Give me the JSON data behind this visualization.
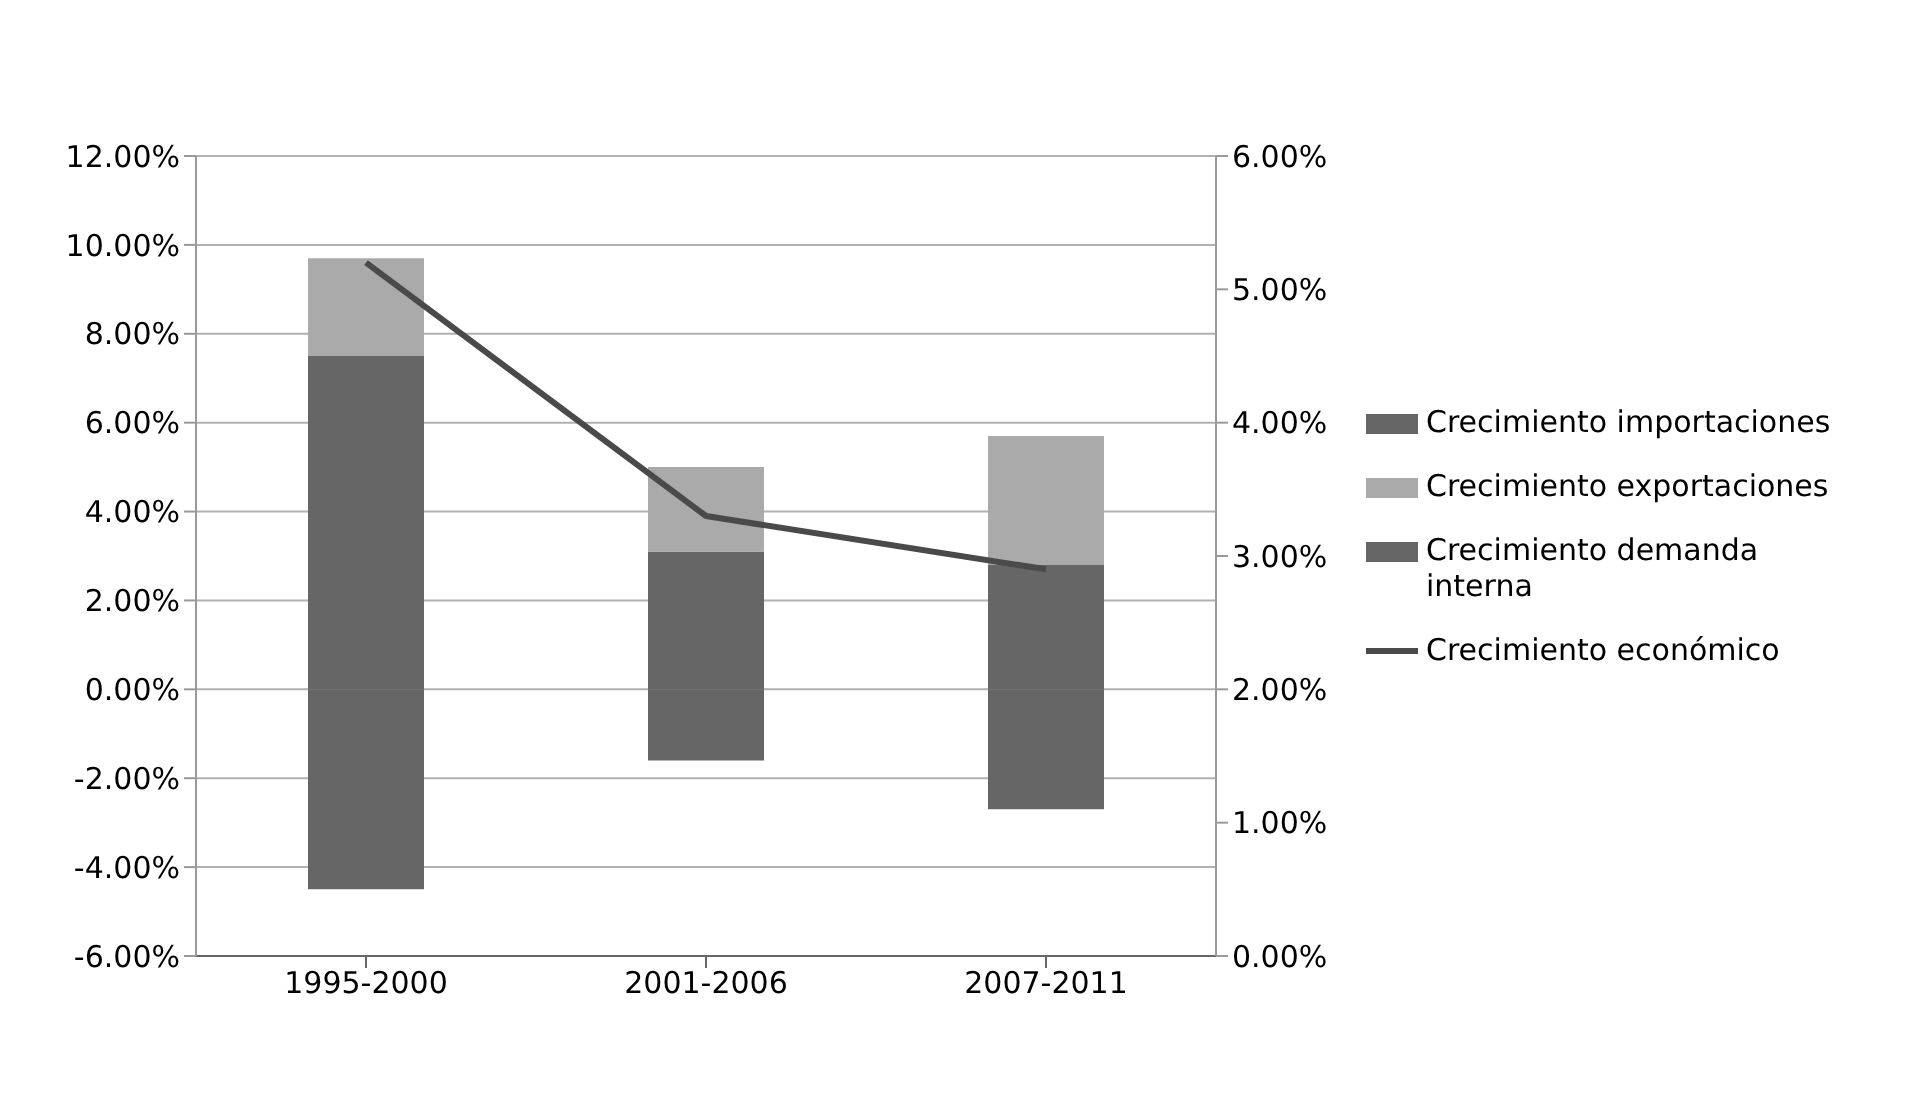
{
  "chart_data": {
    "type": "bar",
    "stacked": true,
    "categories": [
      "1995-2000",
      "2001-2006",
      "2007-2011"
    ],
    "series": [
      {
        "name": "Crecimiento demanda interna",
        "color": "#666666",
        "values": [
          7.5,
          3.1,
          2.8
        ]
      },
      {
        "name": "Crecimiento exportaciones",
        "color": "#aaaaaa",
        "values": [
          2.2,
          1.9,
          2.9
        ]
      },
      {
        "name": "Crecimiento importaciones",
        "color": "#666666",
        "values": [
          -4.5,
          -1.6,
          -2.7
        ]
      },
      {
        "name": "Crecimiento económico",
        "type": "line",
        "axis": "y2",
        "color": "#4a4a4a",
        "values": [
          5.2,
          3.3,
          2.9
        ]
      }
    ],
    "ylim": [
      -6,
      12
    ],
    "yticks": [
      {
        "value": -6,
        "label": "-6.00%"
      },
      {
        "value": -4,
        "label": "-4.00%"
      },
      {
        "value": -2,
        "label": "-2.00%"
      },
      {
        "value": 0,
        "label": "0.00%"
      },
      {
        "value": 2,
        "label": "2.00%"
      },
      {
        "value": 4,
        "label": "4.00%"
      },
      {
        "value": 6,
        "label": "6.00%"
      },
      {
        "value": 8,
        "label": "8.00%"
      },
      {
        "value": 10,
        "label": "10.00%"
      },
      {
        "value": 12,
        "label": "12.00%"
      }
    ],
    "y2lim": [
      0,
      6
    ],
    "y2ticks": [
      {
        "value": 0,
        "label": "0.00%"
      },
      {
        "value": 1,
        "label": "1.00%"
      },
      {
        "value": 2,
        "label": "2.00%"
      },
      {
        "value": 3,
        "label": "3.00%"
      },
      {
        "value": 4,
        "label": "4.00%"
      },
      {
        "value": 5,
        "label": "5.00%"
      },
      {
        "value": 6,
        "label": "6.00%"
      }
    ],
    "grid": "y",
    "legend": "right",
    "marker": "none"
  }
}
